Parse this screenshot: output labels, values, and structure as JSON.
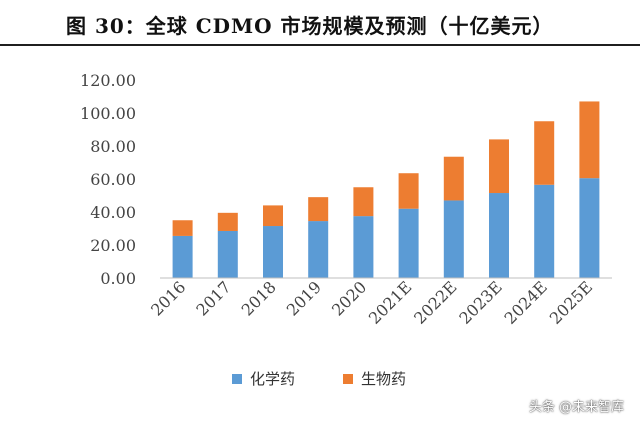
{
  "title": "图 30：全球 CDMO 市场规模及预测（十亿美元）",
  "watermark": "头条 @未来智库",
  "chart_data": {
    "type": "bar",
    "stacked": true,
    "title": "图 30：全球 CDMO 市场规模及预测（十亿美元）",
    "categories": [
      "2016",
      "2017",
      "2018",
      "2019",
      "2020",
      "2021E",
      "2022E",
      "2023E",
      "2024E",
      "2025E"
    ],
    "series": [
      {
        "name": "化学药",
        "color": "#5B9BD5",
        "values": [
          25.5,
          28.5,
          31.5,
          34.5,
          37.5,
          42.0,
          47.0,
          51.5,
          56.5,
          60.5
        ]
      },
      {
        "name": "生物药",
        "color": "#ED7D31",
        "values": [
          9.5,
          11.0,
          12.5,
          14.5,
          17.5,
          21.5,
          26.5,
          32.5,
          38.5,
          46.5
        ]
      }
    ],
    "yticks": [
      "0.00",
      "20.00",
      "40.00",
      "60.00",
      "80.00",
      "100.00",
      "120.00"
    ],
    "ylim": [
      0,
      120
    ],
    "grid": false,
    "legend": "bottom"
  }
}
